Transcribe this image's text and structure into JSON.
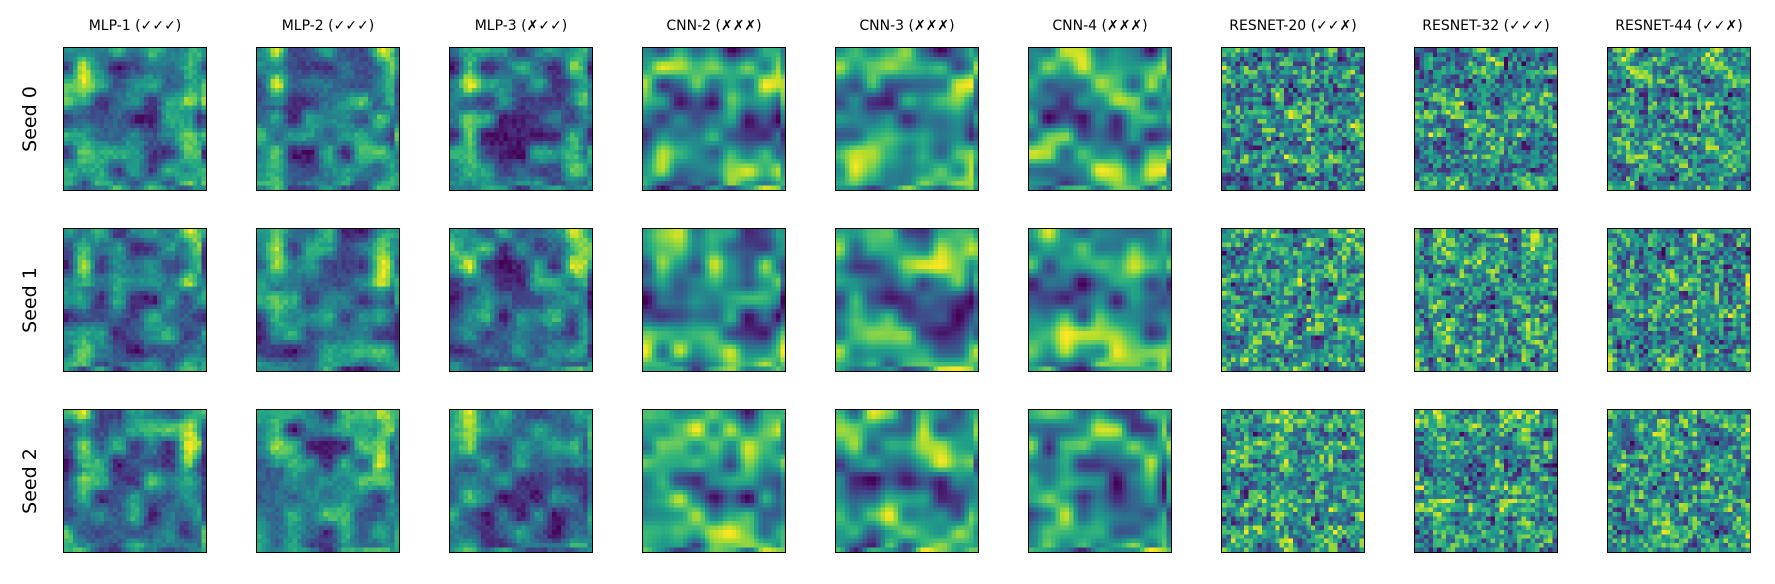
{
  "chart_data": {
    "type": "heatmap",
    "colormap": "viridis",
    "axes": "off",
    "grid": false,
    "columns": [
      "MLP-1 (✓✓✓)",
      "MLP-2 (✓✓✓)",
      "MLP-3 (✗✓✓)",
      "CNN-2 (✗✗✗)",
      "CNN-3 (✗✗✗)",
      "CNN-4 (✗✗✗)",
      "RESNET-20 (✓✓✗)",
      "RESNET-32 (✓✓✓)",
      "RESNET-44 (✓✓✗)"
    ],
    "rows": [
      "Seed 0",
      "Seed 1",
      "Seed 2"
    ],
    "panel_resolution": [
      32,
      32
    ]
  }
}
